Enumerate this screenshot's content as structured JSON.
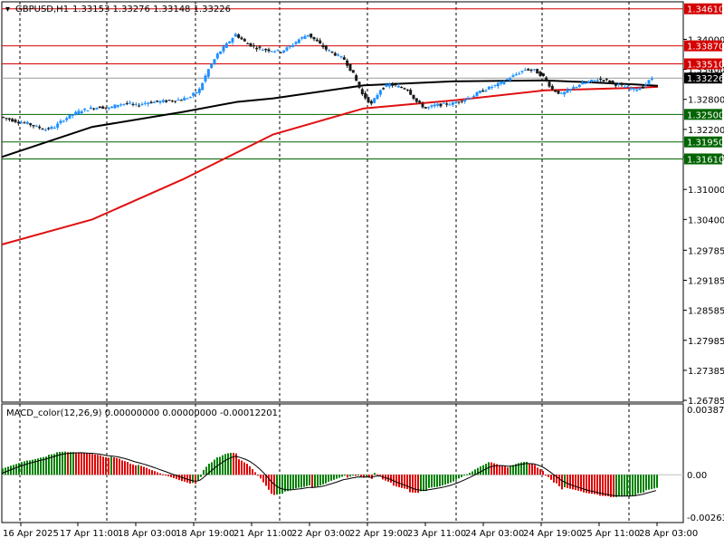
{
  "header": {
    "symbol": "GBPUSD,H1",
    "ohlc": "1.33153 1.33276 1.33148 1.33226",
    "menu_arrow": "triangle-down-icon"
  },
  "macd_header": {
    "label": "MACD_color(12,26,9) 0.00000000 0.00000000 -0.00012201"
  },
  "price_axis": {
    "min": 1.2675,
    "max": 1.3475,
    "ticks": [
      "1.34000",
      "1.33400",
      "1.32800",
      "1.32200",
      "1.31650",
      "1.31000",
      "1.30400",
      "1.29785",
      "1.29185",
      "1.28585",
      "1.27985",
      "1.27385",
      "1.26785"
    ],
    "tick_values": [
      1.34,
      1.334,
      1.328,
      1.322,
      1.3165,
      1.31,
      1.304,
      1.29785,
      1.29185,
      1.28585,
      1.27985,
      1.27385,
      1.26785
    ]
  },
  "macd_axis": {
    "min": -0.0027,
    "max": 0.004,
    "labels": [
      "0.0038742",
      "0.00",
      "-0.002632"
    ],
    "label_values": [
      0.0038742,
      0.0,
      -0.002632
    ]
  },
  "time_axis": {
    "labels": [
      "16 Apr 2025",
      "17 Apr 11:00",
      "18 Apr 03:00",
      "18 Apr 19:00",
      "21 Apr 11:00",
      "22 Apr 03:00",
      "22 Apr 19:00",
      "23 Apr 11:00",
      "24 Apr 03:00",
      "24 Apr 19:00",
      "25 Apr 11:00",
      "28 Apr 03:00"
    ]
  },
  "levels": [
    {
      "price": 1.3461,
      "label": "1.34610",
      "color": "#d40000"
    },
    {
      "price": 1.3387,
      "label": "1.33870",
      "color": "#d40000"
    },
    {
      "price": 1.3351,
      "label": "1.33510",
      "color": "#d40000"
    },
    {
      "price": 1.325,
      "label": "1.32500",
      "color": "#006400"
    },
    {
      "price": 1.3195,
      "label": "1.31950",
      "color": "#006400"
    },
    {
      "price": 1.3161,
      "label": "1.31610",
      "color": "#006400"
    }
  ],
  "current_price": {
    "price": 1.33226,
    "label": "1.33226",
    "color": "#000000"
  },
  "colors": {
    "bull": "#1e90ff",
    "bear": "#1a1a1a",
    "ma_slow": "#e01010",
    "ma_fast": "#000000",
    "macd_up": "#008000",
    "macd_down": "#e00000",
    "signal": "#000000",
    "grid_dash": "#000000"
  },
  "chart_data": {
    "type": "line",
    "title": "GBPUSD,H1",
    "series": [
      {
        "name": "",
        "values_desc": "price",
        "x": [
          0,
          10,
          20,
          30,
          40,
          50,
          60,
          70,
          80,
          90,
          100,
          110,
          120,
          130,
          140,
          150,
          160,
          170,
          180,
          190,
          200,
          210,
          220,
          230,
          240,
          250,
          260,
          270,
          280,
          290,
          300,
          310,
          320,
          330,
          340,
          350,
          360,
          370,
          380,
          390,
          400,
          410,
          420,
          430,
          440,
          450,
          460,
          470,
          480,
          490,
          500,
          510,
          520,
          530,
          540,
          550,
          560,
          570,
          580,
          590,
          600,
          610,
          620,
          630,
          640,
          650,
          660,
          670,
          680,
          690,
          700,
          710,
          720
        ],
        "values": [
          1.3245,
          1.324,
          1.3235,
          1.3232,
          1.3225,
          1.322,
          1.3225,
          1.324,
          1.325,
          1.3258,
          1.3262,
          1.3265,
          1.3262,
          1.327,
          1.3272,
          1.3268,
          1.3273,
          1.3275,
          1.3276,
          1.3278,
          1.328,
          1.3285,
          1.33,
          1.334,
          1.337,
          1.339,
          1.341,
          1.3395,
          1.3385,
          1.338,
          1.3378,
          1.3376,
          1.3385,
          1.34,
          1.341,
          1.3395,
          1.338,
          1.337,
          1.336,
          1.333,
          1.329,
          1.327,
          1.33,
          1.331,
          1.3305,
          1.33,
          1.3275,
          1.3262,
          1.3268,
          1.327,
          1.3272,
          1.3278,
          1.3285,
          1.3295,
          1.3303,
          1.331,
          1.332,
          1.333,
          1.334,
          1.3338,
          1.3325,
          1.33,
          1.329,
          1.33,
          1.331,
          1.3315,
          1.332,
          1.3318,
          1.331,
          1.3305,
          1.33,
          1.3305,
          1.3322
        ]
      },
      {
        "name": "",
        "values_desc": "slow MA",
        "x": [
          0,
          100,
          200,
          300,
          400,
          500,
          600,
          700,
          725
        ],
        "values": [
          1.299,
          1.304,
          1.312,
          1.321,
          1.3262,
          1.3278,
          1.3298,
          1.3303,
          1.3305
        ]
      },
      {
        "name": "",
        "values_desc": "fast MA",
        "x": [
          0,
          100,
          200,
          260,
          300,
          400,
          500,
          600,
          700,
          725
        ],
        "values": [
          1.3165,
          1.3225,
          1.3255,
          1.3275,
          1.3282,
          1.3308,
          1.3316,
          1.3318,
          1.331,
          1.3307
        ]
      }
    ],
    "ylim": [
      1.2675,
      1.3475
    ],
    "xlabel": "",
    "ylabel": ""
  }
}
